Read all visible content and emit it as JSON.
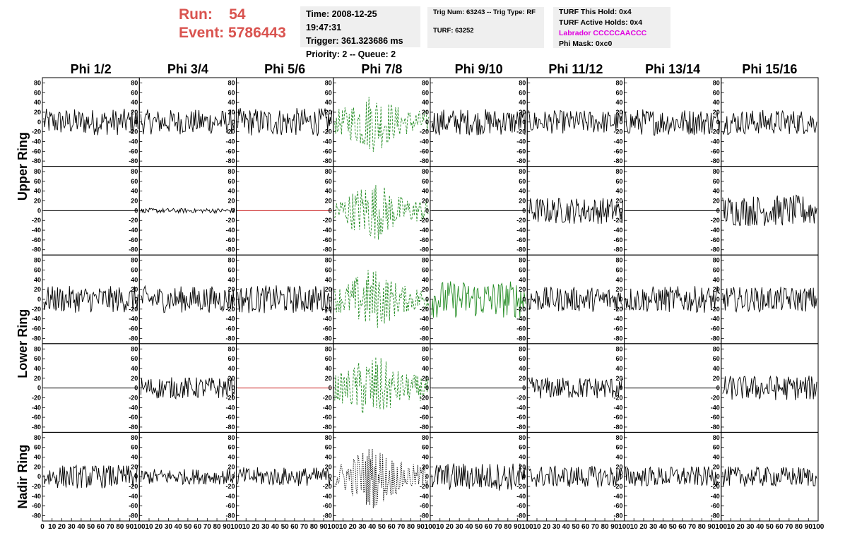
{
  "header": {
    "run_label": "Run:",
    "run_value": "54",
    "event_label": "Event:",
    "event_value": "5786443"
  },
  "info_box_1": {
    "time": "Time: 2008-12-25 19:47:31",
    "trigger": "Trigger: 361.323686 ms",
    "priority": "Priority: 2 -- Queue: 2"
  },
  "info_box_2": {
    "trig": "Trig Num: 63243 -- Trig Type: RF",
    "turf": "TURF: 63252"
  },
  "info_box_3": {
    "this_hold": "TURF This Hold: 0x4",
    "active_holds": "TURF Active Holds: 0x4",
    "labrador": "Labrador CCCCCAACCC",
    "phi_mask": "Phi Mask: 0xc0"
  },
  "chart_data": {
    "type": "line",
    "columns": [
      "Phi 1/2",
      "Phi 3/4",
      "Phi 5/6",
      "Phi 7/8",
      "Phi 9/10",
      "Phi 11/12",
      "Phi 13/14",
      "Phi 15/16"
    ],
    "rings": [
      "Upper Ring",
      "Lower Ring",
      "Nadir Ring"
    ],
    "y_ticks": [
      "80",
      "60",
      "40",
      "20",
      "0",
      "-20",
      "-40",
      "-60",
      "-80"
    ],
    "x_ticks": [
      "0",
      "10",
      "20",
      "30",
      "40",
      "50",
      "60",
      "70",
      "80",
      "90",
      "100"
    ],
    "xlim": [
      0,
      100
    ],
    "ylim": [
      -85,
      85
    ],
    "rows": [
      {
        "ring": "Upper Ring",
        "amplitudes": [
          17,
          16,
          18,
          27,
          17,
          15,
          17,
          16
        ],
        "styles": [
          "solid",
          "solid",
          "solid",
          "dash",
          "solid",
          "solid",
          "solid",
          "solid"
        ],
        "colors": [
          "#000000",
          "#000000",
          "#000000",
          "#228b22",
          "#000000",
          "#000000",
          "#000000",
          "#000000"
        ]
      },
      {
        "ring": "Upper Ring",
        "amplitudes": [
          0,
          3,
          0,
          27,
          0,
          17,
          0,
          20
        ],
        "styles": [
          "flat",
          "solid",
          "flat",
          "dash",
          "flat",
          "solid",
          "flat",
          "solid"
        ],
        "colors": [
          "#000000",
          "#000000",
          "#cc2222",
          "#228b22",
          "#000000",
          "#000000",
          "#000000",
          "#000000"
        ]
      },
      {
        "ring": "Lower Ring",
        "amplitudes": [
          17,
          17,
          18,
          28,
          24,
          16,
          17,
          16
        ],
        "styles": [
          "solid",
          "solid",
          "solid",
          "dash",
          "solid",
          "solid",
          "solid",
          "solid"
        ],
        "colors": [
          "#000000",
          "#000000",
          "#000000",
          "#228b22",
          "#228b22",
          "#000000",
          "#000000",
          "#000000"
        ]
      },
      {
        "ring": "Lower Ring",
        "amplitudes": [
          0,
          14,
          0,
          30,
          0,
          14,
          0,
          16
        ],
        "styles": [
          "flat",
          "solid",
          "flat",
          "dash",
          "flat",
          "solid",
          "flat",
          "solid"
        ],
        "colors": [
          "#000000",
          "#000000",
          "#cc2222",
          "#228b22",
          "#000000",
          "#000000",
          "#000000",
          "#000000"
        ]
      },
      {
        "ring": "Nadir Ring",
        "amplitudes": [
          15,
          10,
          12,
          28,
          18,
          14,
          13,
          13
        ],
        "styles": [
          "solid",
          "solid",
          "solid",
          "dot",
          "solid",
          "solid",
          "solid",
          "solid"
        ],
        "colors": [
          "#000000",
          "#000000",
          "#000000",
          "#000000",
          "#000000",
          "#000000",
          "#000000",
          "#000000"
        ]
      }
    ]
  }
}
